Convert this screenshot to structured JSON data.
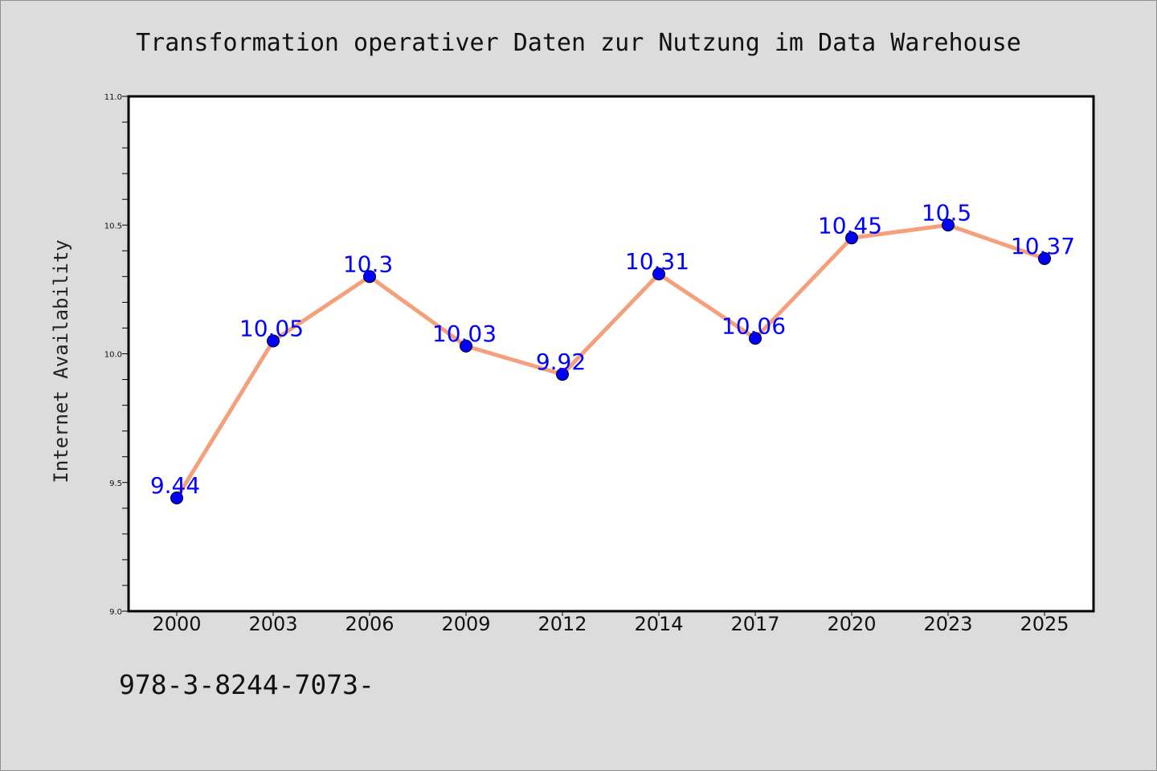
{
  "chart_data": {
    "type": "line",
    "title": "Transformation operativer Daten zur Nutzung im Data Warehouse",
    "xlabel": "",
    "ylabel": "Internet Availability",
    "categories": [
      "2000",
      "2003",
      "2006",
      "2009",
      "2012",
      "2014",
      "2017",
      "2020",
      "2023",
      "2025"
    ],
    "series": [
      {
        "values": [
          9.44,
          10.05,
          10.3,
          10.03,
          9.92,
          10.31,
          10.06,
          10.45,
          10.5,
          10.37
        ],
        "data_labels": [
          "9.44",
          "10.05",
          "10.3",
          "10.03",
          "9.92",
          "10.31",
          "10.06",
          "10.45",
          "10.5",
          "10.37"
        ],
        "line_color": "#f4a07c",
        "marker_color": "#0000ff"
      }
    ],
    "ylim": [
      9.0,
      11.0
    ],
    "yticks": [
      9.0,
      9.5,
      10.0,
      10.5,
      11.0
    ],
    "ytick_labels": [
      "9.0",
      "9.5",
      "10.0",
      "10.5",
      "11.0"
    ],
    "grid": false,
    "legend": "none"
  },
  "footer": {
    "text": "978-3-8244-7073-"
  },
  "colors": {
    "page_background": "#dcdcdc",
    "plot_background": "#ffffff",
    "line": "#f4a07c",
    "marker": "#0000ff",
    "data_label": "#0000ff"
  }
}
